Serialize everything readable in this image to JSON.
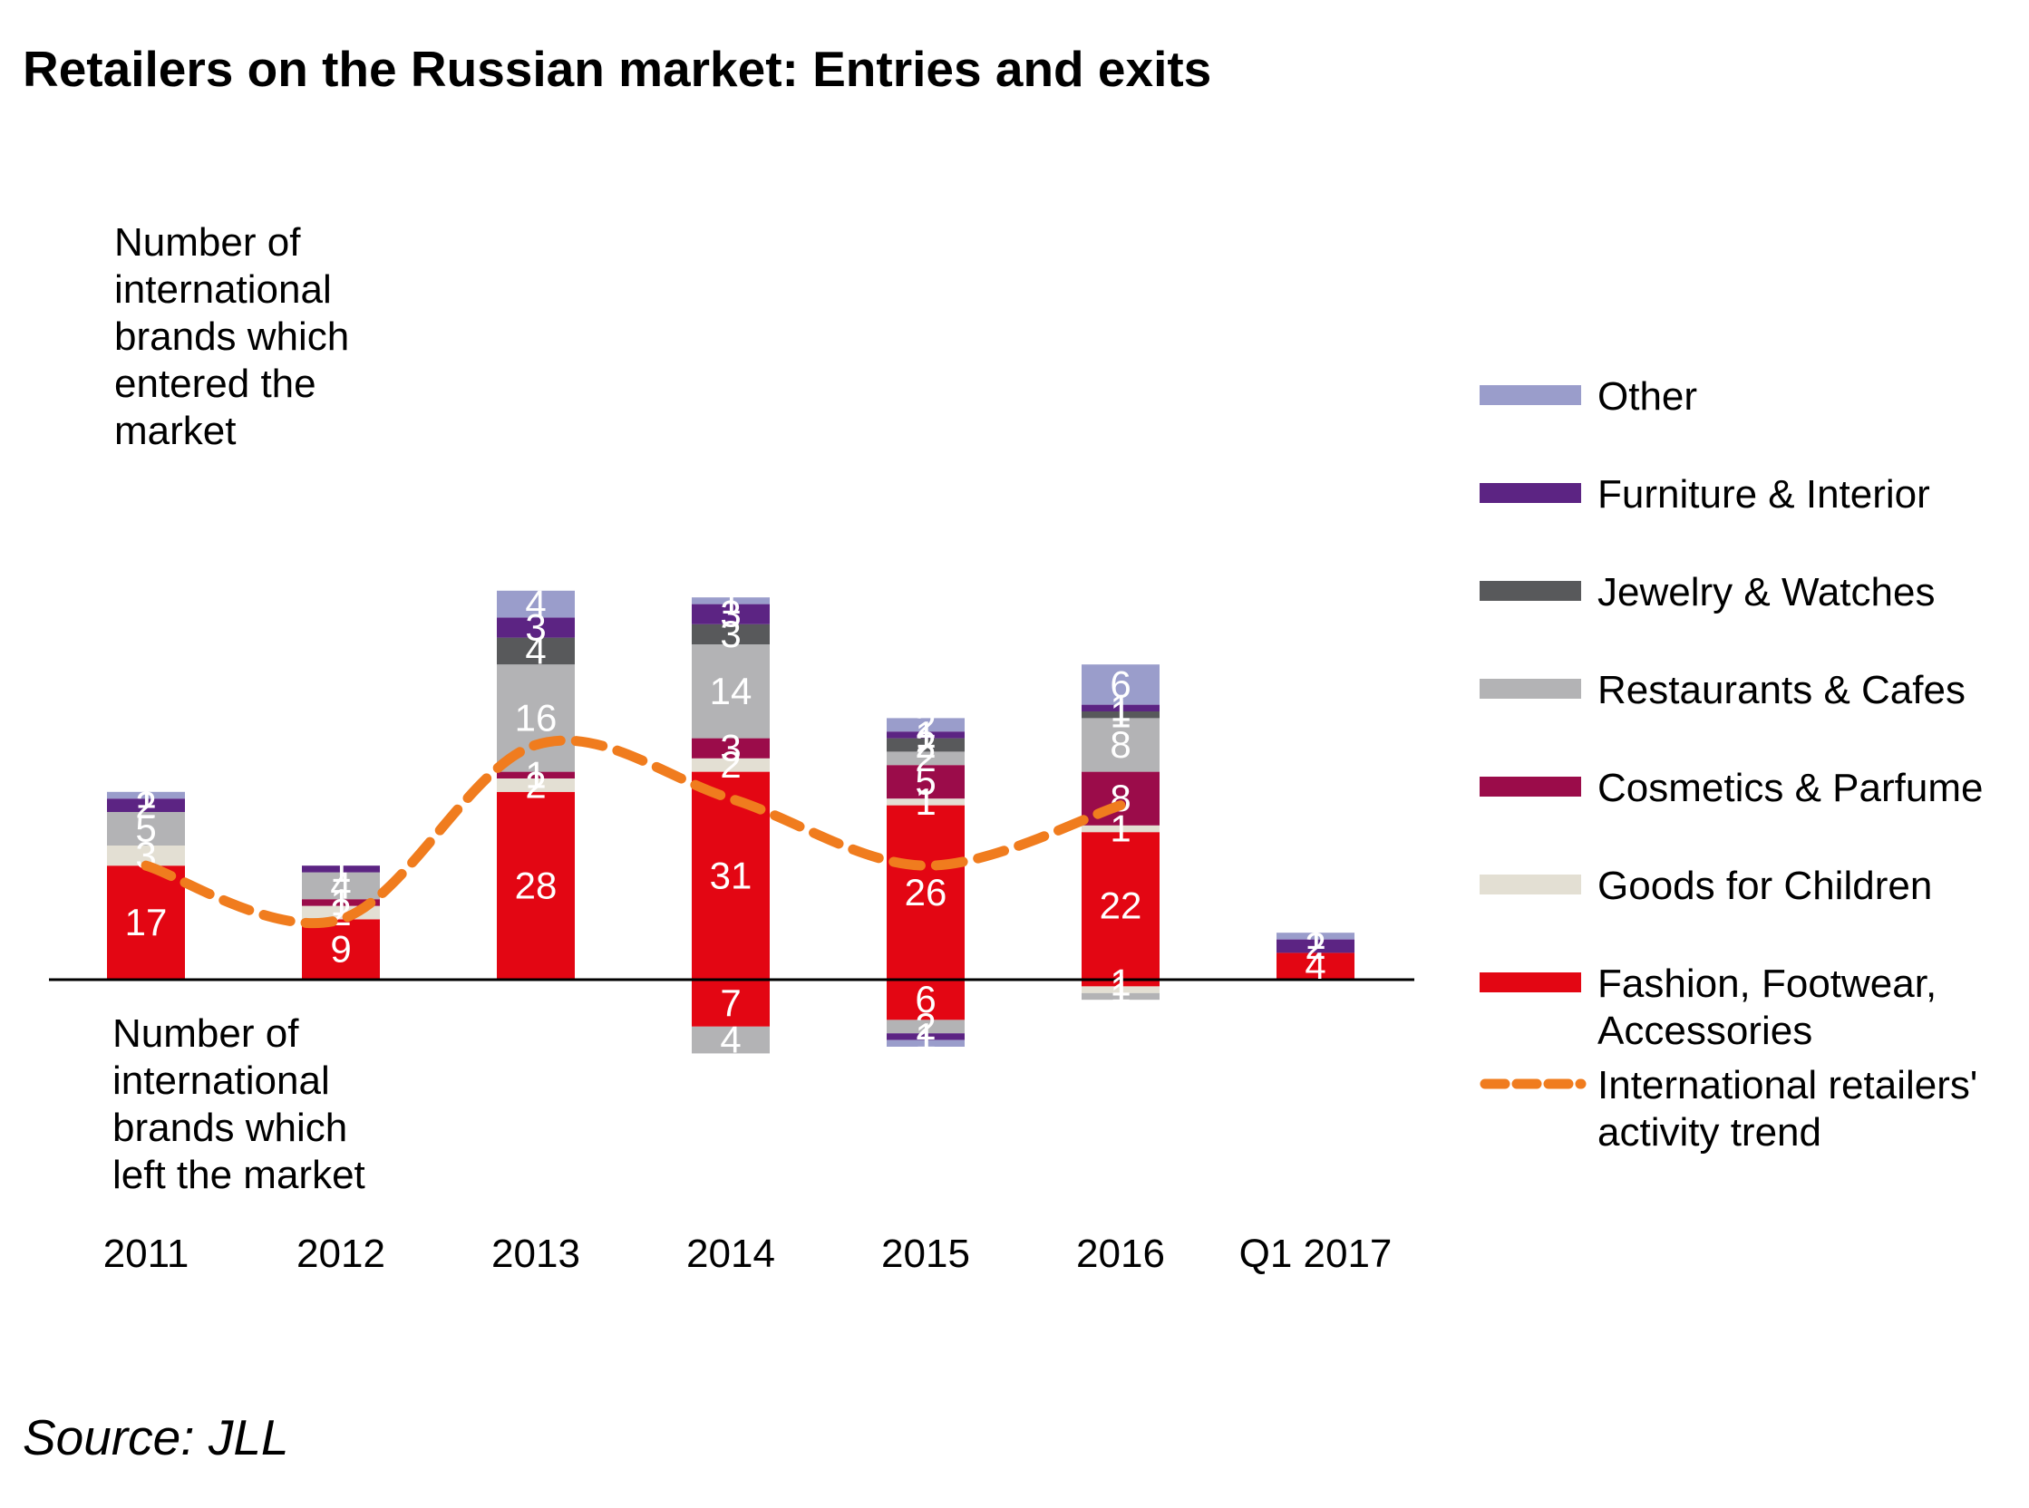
{
  "chart_data": {
    "type": "bar",
    "stacked": true,
    "title": "Retailers on the Russian market: Entries and exits",
    "source": "Source: JLL",
    "annotation_top": [
      "Number of",
      "international",
      "brands which",
      "entered the",
      "market"
    ],
    "annotation_bottom": [
      "Number of",
      "international",
      "brands which",
      "left the market"
    ],
    "categories": [
      "2011",
      "2012",
      "2013",
      "2014",
      "2015",
      "2016",
      "Q1 2017"
    ],
    "legend_position": "right",
    "grid": false,
    "ylim": [
      -14,
      73
    ],
    "series": [
      {
        "name": "Fashion, Footwear, Accessories",
        "color": "#e30613",
        "entries": [
          17,
          9,
          28,
          31,
          26,
          22,
          4
        ],
        "exits": [
          0,
          0,
          0,
          7,
          6,
          1,
          0
        ]
      },
      {
        "name": "Goods for Children",
        "color": "#e3dfd3",
        "entries": [
          3,
          2,
          2,
          2,
          1,
          1,
          0
        ],
        "exits": [
          0,
          0,
          0,
          0,
          0,
          1,
          0
        ]
      },
      {
        "name": "Cosmetics & Parfume",
        "color": "#9b0c4a",
        "entries": [
          0,
          1,
          1,
          3,
          5,
          8,
          0
        ],
        "exits": [
          0,
          0,
          0,
          0,
          0,
          0,
          0
        ]
      },
      {
        "name": "Restaurants & Cafes",
        "color": "#b3b3b5",
        "entries": [
          5,
          4,
          16,
          14,
          2,
          8,
          0
        ],
        "exits": [
          0,
          0,
          0,
          4,
          2,
          1,
          0
        ]
      },
      {
        "name": "Jewelry & Watches",
        "color": "#58595b",
        "entries": [
          0,
          0,
          4,
          3,
          2,
          1,
          0
        ],
        "exits": [
          0,
          0,
          0,
          0,
          0,
          0,
          0
        ]
      },
      {
        "name": "Furniture & Interior",
        "color": "#5c2483",
        "entries": [
          2,
          1,
          3,
          3,
          1,
          1,
          2
        ],
        "exits": [
          0,
          0,
          0,
          0,
          1,
          0,
          0
        ]
      },
      {
        "name": "Other",
        "color": "#9a9dcb",
        "entries": [
          1,
          0,
          4,
          1,
          2,
          6,
          1
        ],
        "exits": [
          0,
          0,
          0,
          0,
          1,
          0,
          0
        ]
      }
    ],
    "trend": {
      "name": "International retailers' activity trend",
      "color": "#f07c1e",
      "style": "dashed",
      "values": [
        17,
        9,
        35,
        27,
        17,
        26
      ]
    }
  }
}
